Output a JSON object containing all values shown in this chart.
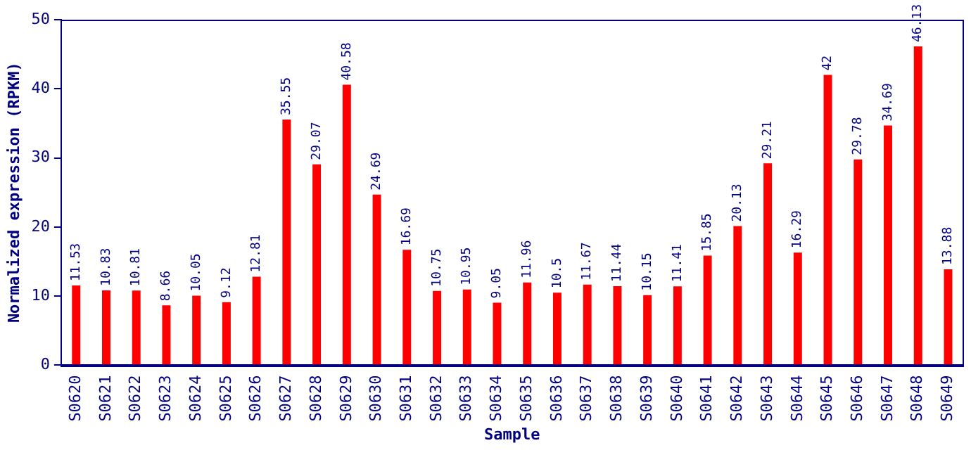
{
  "chart_data": {
    "type": "bar",
    "xlabel": "Sample",
    "ylabel": "Normalized expression (RPKM)",
    "categories": [
      "S0620",
      "S0621",
      "S0622",
      "S0623",
      "S0624",
      "S0625",
      "S0626",
      "S0627",
      "S0628",
      "S0629",
      "S0630",
      "S0631",
      "S0632",
      "S0633",
      "S0634",
      "S0635",
      "S0636",
      "S0637",
      "S0638",
      "S0639",
      "S0640",
      "S0641",
      "S0642",
      "S0643",
      "S0644",
      "S0645",
      "S0646",
      "S0647",
      "S0648",
      "S0649"
    ],
    "values": [
      11.53,
      10.83,
      10.81,
      8.66,
      10.05,
      9.12,
      12.81,
      35.55,
      29.07,
      40.58,
      24.69,
      16.69,
      10.75,
      10.95,
      9.05,
      11.96,
      10.5,
      11.67,
      11.44,
      10.15,
      11.41,
      15.85,
      20.13,
      29.21,
      16.29,
      42,
      29.78,
      34.69,
      46.13,
      13.88
    ],
    "color": "#ff0000",
    "ylim": [
      0,
      50
    ],
    "yticks": [
      0,
      10,
      20,
      30,
      40,
      50
    ],
    "grid": false,
    "legend": false,
    "data_labels": true
  }
}
